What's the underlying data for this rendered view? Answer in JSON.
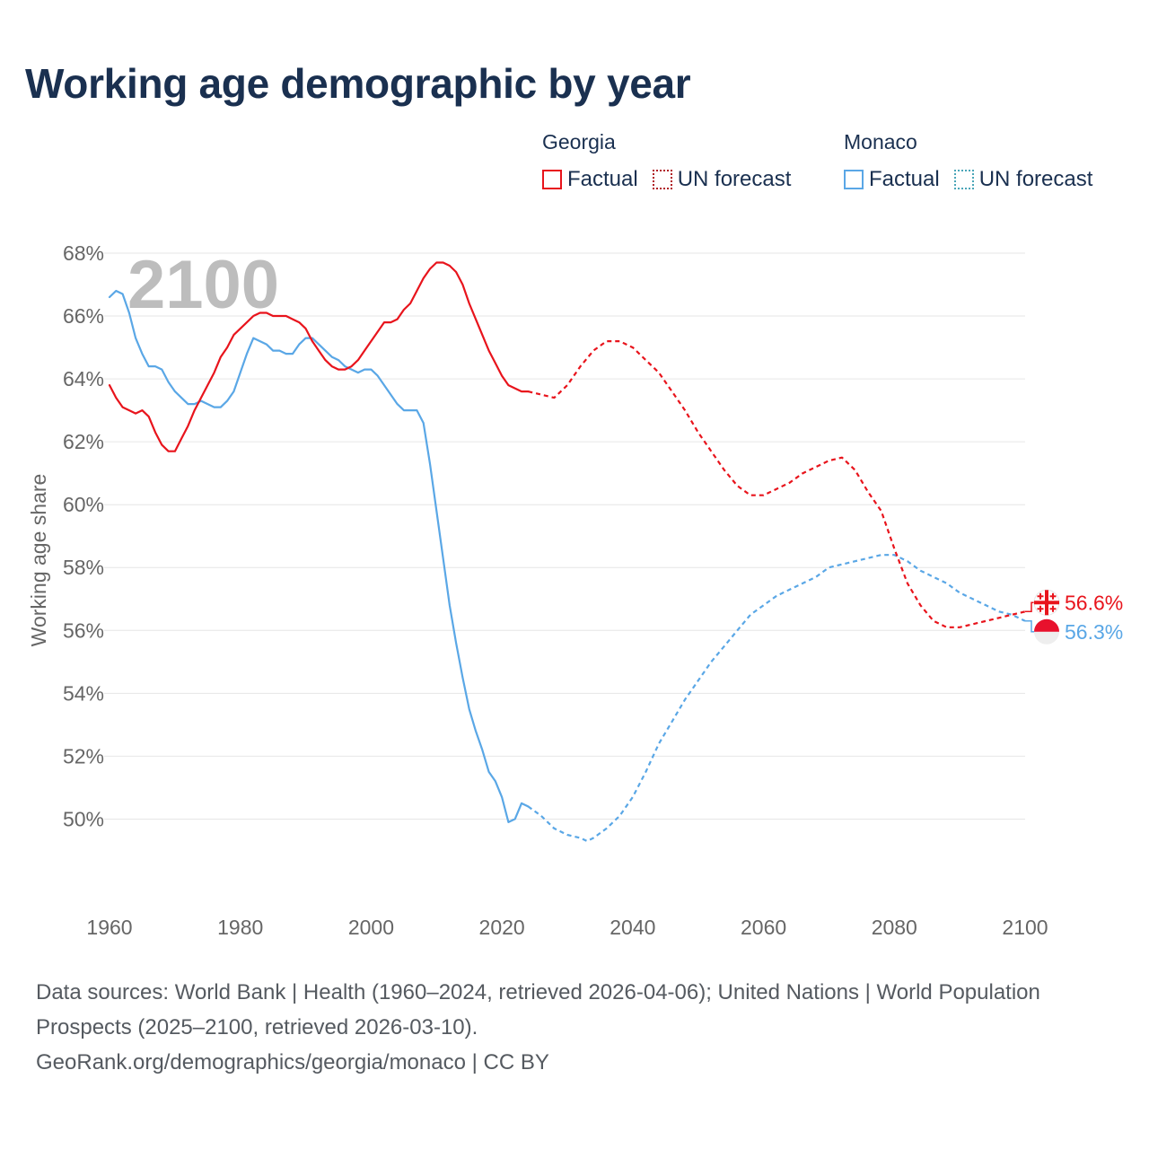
{
  "title": "Working age demographic by year",
  "legend": {
    "groups": [
      {
        "name": "Georgia",
        "factual_label": "Factual",
        "forecast_label": "UN forecast",
        "color": "#e8141c",
        "forecast_color": "#b01e24"
      },
      {
        "name": "Monaco",
        "factual_label": "Factual",
        "forecast_label": "UN forecast",
        "color": "#5aa7e6",
        "forecast_color": "#4aa6b8"
      }
    ]
  },
  "year_label": "2100",
  "footer": {
    "sources": "Data sources: World Bank | Health (1960–2024, retrieved 2026-04-06); United Nations | World Population Prospects (2025–2100, retrieved 2026-03-10).",
    "credit": "GeoRank.org/demographics/georgia/monaco | CC BY"
  },
  "chart_data": {
    "type": "line",
    "title": "Working age demographic by year",
    "xlabel": "",
    "ylabel": "Working age share",
    "xlim": [
      1960,
      2100
    ],
    "ylim": [
      47.5,
      68
    ],
    "x_ticks": [
      1960,
      1980,
      2000,
      2020,
      2040,
      2060,
      2080,
      2100
    ],
    "x_tick_labels": [
      "1960",
      "1980",
      "2000",
      "2020",
      "2040",
      "2060",
      "2080",
      "2100"
    ],
    "y_ticks": [
      50,
      52,
      54,
      56,
      58,
      60,
      62,
      64,
      66,
      68
    ],
    "y_tick_labels": [
      "50%",
      "52%",
      "54%",
      "56%",
      "58%",
      "60%",
      "62%",
      "64%",
      "66%",
      "68%"
    ],
    "grid": true,
    "series": [
      {
        "name": "Georgia",
        "color": "#e8141c",
        "end_label": "56.6%",
        "factual": {
          "x": [
            1960,
            1961,
            1962,
            1963,
            1964,
            1965,
            1966,
            1967,
            1968,
            1969,
            1970,
            1971,
            1972,
            1973,
            1974,
            1975,
            1976,
            1977,
            1978,
            1979,
            1980,
            1981,
            1982,
            1983,
            1984,
            1985,
            1986,
            1987,
            1988,
            1989,
            1990,
            1991,
            1992,
            1993,
            1994,
            1995,
            1996,
            1997,
            1998,
            1999,
            2000,
            2001,
            2002,
            2003,
            2004,
            2005,
            2006,
            2007,
            2008,
            2009,
            2010,
            2011,
            2012,
            2013,
            2014,
            2015,
            2016,
            2017,
            2018,
            2019,
            2020,
            2021,
            2022,
            2023,
            2024
          ],
          "y": [
            63.8,
            63.4,
            63.1,
            63.0,
            62.9,
            63.0,
            62.8,
            62.3,
            61.9,
            61.7,
            61.7,
            62.1,
            62.5,
            63.0,
            63.4,
            63.8,
            64.2,
            64.7,
            65.0,
            65.4,
            65.6,
            65.8,
            66.0,
            66.1,
            66.1,
            66.0,
            66.0,
            66.0,
            65.9,
            65.8,
            65.6,
            65.2,
            64.9,
            64.6,
            64.4,
            64.3,
            64.3,
            64.4,
            64.6,
            64.9,
            65.2,
            65.5,
            65.8,
            65.8,
            65.9,
            66.2,
            66.4,
            66.8,
            67.2,
            67.5,
            67.7,
            67.7,
            67.6,
            67.4,
            67.0,
            66.4,
            65.9,
            65.4,
            64.9,
            64.5,
            64.1,
            63.8,
            63.7,
            63.6,
            63.6
          ]
        },
        "forecast": {
          "x": [
            2024,
            2026,
            2028,
            2030,
            2032,
            2034,
            2036,
            2038,
            2040,
            2042,
            2044,
            2046,
            2048,
            2050,
            2052,
            2054,
            2056,
            2058,
            2060,
            2062,
            2064,
            2066,
            2068,
            2070,
            2072,
            2074,
            2076,
            2078,
            2080,
            2082,
            2084,
            2086,
            2088,
            2090,
            2092,
            2094,
            2096,
            2098,
            2100
          ],
          "y": [
            63.6,
            63.5,
            63.4,
            63.8,
            64.4,
            64.9,
            65.2,
            65.2,
            65.0,
            64.6,
            64.2,
            63.6,
            63.0,
            62.3,
            61.7,
            61.1,
            60.6,
            60.3,
            60.3,
            60.5,
            60.7,
            61.0,
            61.2,
            61.4,
            61.5,
            61.1,
            60.4,
            59.8,
            58.6,
            57.5,
            56.8,
            56.3,
            56.1,
            56.1,
            56.2,
            56.3,
            56.4,
            56.5,
            56.6
          ]
        }
      },
      {
        "name": "Monaco",
        "color": "#5aa7e6",
        "end_label": "56.3%",
        "factual": {
          "x": [
            1960,
            1961,
            1962,
            1963,
            1964,
            1965,
            1966,
            1967,
            1968,
            1969,
            1970,
            1971,
            1972,
            1973,
            1974,
            1975,
            1976,
            1977,
            1978,
            1979,
            1980,
            1981,
            1982,
            1983,
            1984,
            1985,
            1986,
            1987,
            1988,
            1989,
            1990,
            1991,
            1992,
            1993,
            1994,
            1995,
            1996,
            1997,
            1998,
            1999,
            2000,
            2001,
            2002,
            2003,
            2004,
            2005,
            2006,
            2007,
            2008,
            2009,
            2010,
            2011,
            2012,
            2013,
            2014,
            2015,
            2016,
            2017,
            2018,
            2019,
            2020,
            2021,
            2022,
            2023,
            2024
          ],
          "y": [
            66.6,
            66.8,
            66.7,
            66.1,
            65.3,
            64.8,
            64.4,
            64.4,
            64.3,
            63.9,
            63.6,
            63.4,
            63.2,
            63.2,
            63.3,
            63.2,
            63.1,
            63.1,
            63.3,
            63.6,
            64.2,
            64.8,
            65.3,
            65.2,
            65.1,
            64.9,
            64.9,
            64.8,
            64.8,
            65.1,
            65.3,
            65.3,
            65.1,
            64.9,
            64.7,
            64.6,
            64.4,
            64.3,
            64.2,
            64.3,
            64.3,
            64.1,
            63.8,
            63.5,
            63.2,
            63.0,
            63.0,
            63.0,
            62.6,
            61.3,
            59.8,
            58.3,
            56.8,
            55.6,
            54.5,
            53.5,
            52.8,
            52.2,
            51.5,
            51.2,
            50.7,
            49.9,
            50.0,
            50.5,
            50.4
          ]
        },
        "forecast": {
          "x": [
            2024,
            2026,
            2028,
            2030,
            2032,
            2033,
            2034,
            2036,
            2038,
            2040,
            2042,
            2044,
            2046,
            2048,
            2050,
            2052,
            2054,
            2056,
            2058,
            2060,
            2062,
            2064,
            2066,
            2068,
            2070,
            2072,
            2074,
            2076,
            2078,
            2080,
            2082,
            2084,
            2086,
            2088,
            2090,
            2092,
            2094,
            2096,
            2098,
            2100
          ],
          "y": [
            50.4,
            50.1,
            49.7,
            49.5,
            49.4,
            49.3,
            49.4,
            49.7,
            50.1,
            50.7,
            51.5,
            52.4,
            53.1,
            53.8,
            54.4,
            55.0,
            55.5,
            56.0,
            56.5,
            56.8,
            57.1,
            57.3,
            57.5,
            57.7,
            58.0,
            58.1,
            58.2,
            58.3,
            58.4,
            58.4,
            58.2,
            57.9,
            57.7,
            57.5,
            57.2,
            57.0,
            56.8,
            56.6,
            56.5,
            56.3
          ]
        }
      }
    ]
  }
}
